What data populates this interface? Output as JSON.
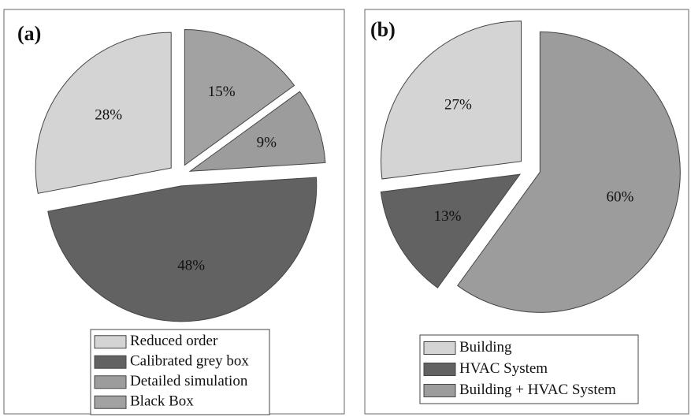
{
  "chart_data": [
    {
      "type": "pie",
      "title": "(a)",
      "categories": [
        "Reduced order",
        "Calibrated grey box",
        "Detailed simulation",
        "Black Box"
      ],
      "values": [
        28,
        48,
        9,
        15
      ],
      "value_labels": [
        "28%",
        "48%",
        "9%",
        "15%"
      ],
      "colors": [
        "#d4d4d4",
        "#626262",
        "#9c9c9c",
        "#a2a2a2"
      ]
    },
    {
      "type": "pie",
      "title": "(b)",
      "categories": [
        "Building",
        "HVAC System",
        "Building + HVAC System"
      ],
      "values": [
        27,
        13,
        60
      ],
      "value_labels": [
        "27%",
        "13%",
        "60%"
      ],
      "colors": [
        "#d4d4d4",
        "#626262",
        "#9c9c9c"
      ]
    }
  ]
}
